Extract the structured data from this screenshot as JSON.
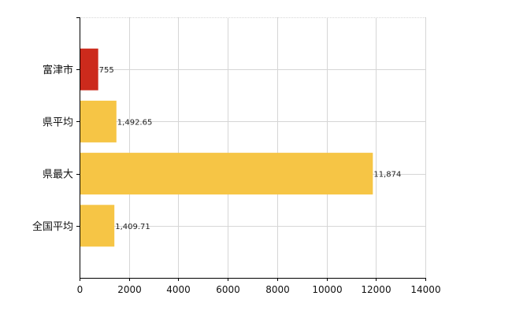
{
  "chart_data": {
    "type": "bar",
    "orientation": "horizontal",
    "categories": [
      "富津市",
      "県平均",
      "県最大",
      "全国平均"
    ],
    "values": [
      755,
      1492.65,
      11874,
      1409.71
    ],
    "value_labels": [
      "755",
      "1,492.65",
      "11,874",
      "1,409.71"
    ],
    "bar_colors": [
      "#cc2a1c",
      "#f6c545",
      "#f6c545",
      "#f6c545"
    ],
    "xlim": [
      0,
      14000
    ],
    "xticks": [
      0,
      2000,
      4000,
      6000,
      8000,
      10000,
      12000,
      14000
    ],
    "xtick_labels": [
      "0",
      "2000",
      "4000",
      "6000",
      "8000",
      "10000",
      "12000",
      "14000"
    ],
    "grid": true,
    "title": "",
    "xlabel": "",
    "ylabel": ""
  }
}
